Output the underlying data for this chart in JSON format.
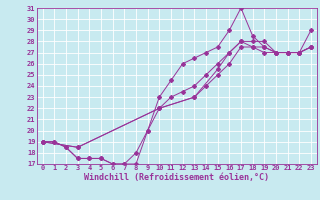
{
  "xlabel": "Windchill (Refroidissement éolien,°C)",
  "xlim": [
    -0.5,
    23.5
  ],
  "ylim": [
    17,
    31
  ],
  "xticks": [
    0,
    1,
    2,
    3,
    4,
    5,
    6,
    7,
    8,
    9,
    10,
    11,
    12,
    13,
    14,
    15,
    16,
    17,
    18,
    19,
    20,
    21,
    22,
    23
  ],
  "yticks": [
    17,
    18,
    19,
    20,
    21,
    22,
    23,
    24,
    25,
    26,
    27,
    28,
    29,
    30,
    31
  ],
  "background_color": "#c8eaf0",
  "grid_color": "#ffffff",
  "line_color": "#993399",
  "line1_x": [
    0,
    1,
    2,
    3,
    4,
    5,
    6,
    7,
    8,
    9,
    10,
    11,
    12,
    13,
    14,
    15,
    16,
    17,
    18,
    19,
    20,
    21,
    22,
    23
  ],
  "line1_y": [
    19,
    19,
    18.5,
    17.5,
    17.5,
    17.5,
    17.0,
    17.0,
    17.0,
    20.0,
    23.0,
    24.5,
    26.0,
    26.5,
    27.0,
    27.5,
    29.0,
    31.0,
    28.5,
    27.5,
    27.0,
    27.0,
    27.0,
    29.0
  ],
  "line2_x": [
    0,
    1,
    2,
    3,
    4,
    5,
    6,
    7,
    8,
    9,
    10,
    11,
    12,
    13,
    14,
    15,
    16,
    17,
    18,
    19,
    20,
    21,
    22,
    23
  ],
  "line2_y": [
    19,
    19,
    18.5,
    17.5,
    17.5,
    17.5,
    17.0,
    17.0,
    18.0,
    20.0,
    22.0,
    23.0,
    23.5,
    24.0,
    25.0,
    26.0,
    27.0,
    28.0,
    27.5,
    27.0,
    27.0,
    27.0,
    27.0,
    27.5
  ],
  "line3_x": [
    0,
    3,
    10,
    13,
    15,
    16,
    17,
    18,
    19,
    20,
    21,
    22,
    23
  ],
  "line3_y": [
    19,
    18.5,
    22.0,
    23.0,
    25.5,
    27.0,
    28.0,
    28.0,
    28.0,
    27.0,
    27.0,
    27.0,
    27.5
  ],
  "line4_x": [
    0,
    3,
    10,
    13,
    14,
    15,
    16,
    17,
    18,
    19,
    20,
    21,
    22,
    23
  ],
  "line4_y": [
    19,
    18.5,
    22.0,
    23.0,
    24.0,
    25.0,
    26.0,
    27.5,
    27.5,
    27.5,
    27.0,
    27.0,
    27.0,
    27.5
  ],
  "tick_fontsize": 5.0,
  "label_fontsize": 6.0
}
